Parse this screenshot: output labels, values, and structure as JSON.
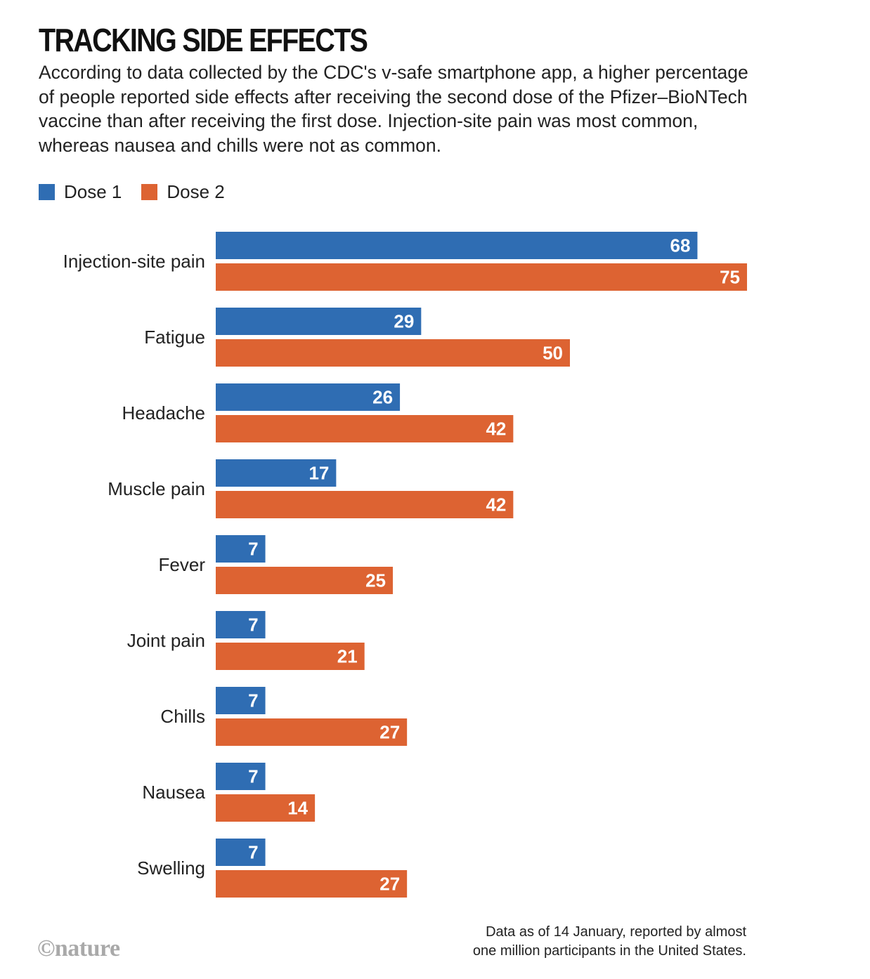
{
  "header": {
    "title": "TRACKING SIDE EFFECTS",
    "subtitle": "According to data collected by the CDC's v-safe smartphone app, a higher percentage of people reported side effects after receiving the second dose of the Pfizer–BioNTech vaccine than after receiving the first dose. Injection-site pain was most common, whereas nausea and chills were not as common."
  },
  "colors": {
    "dose1": "#2f6db3",
    "dose2": "#dd6332"
  },
  "chart_data": {
    "type": "bar",
    "orientation": "horizontal",
    "categories": [
      "Injection-site pain",
      "Fatigue",
      "Headache",
      "Muscle pain",
      "Fever",
      "Joint pain",
      "Chills",
      "Nausea",
      "Swelling"
    ],
    "series": [
      {
        "name": "Dose 1",
        "values": [
          68,
          29,
          26,
          17,
          7,
          7,
          7,
          7,
          7
        ]
      },
      {
        "name": "Dose 2",
        "values": [
          75,
          50,
          42,
          42,
          25,
          21,
          27,
          14,
          27
        ]
      }
    ],
    "xlim": [
      0,
      75
    ],
    "grid": false,
    "legend": "top-left"
  },
  "footer": {
    "note_line1": "Data as of 14 January, reported by almost",
    "note_line2": "one million participants in the United States.",
    "logo": "©nature"
  }
}
